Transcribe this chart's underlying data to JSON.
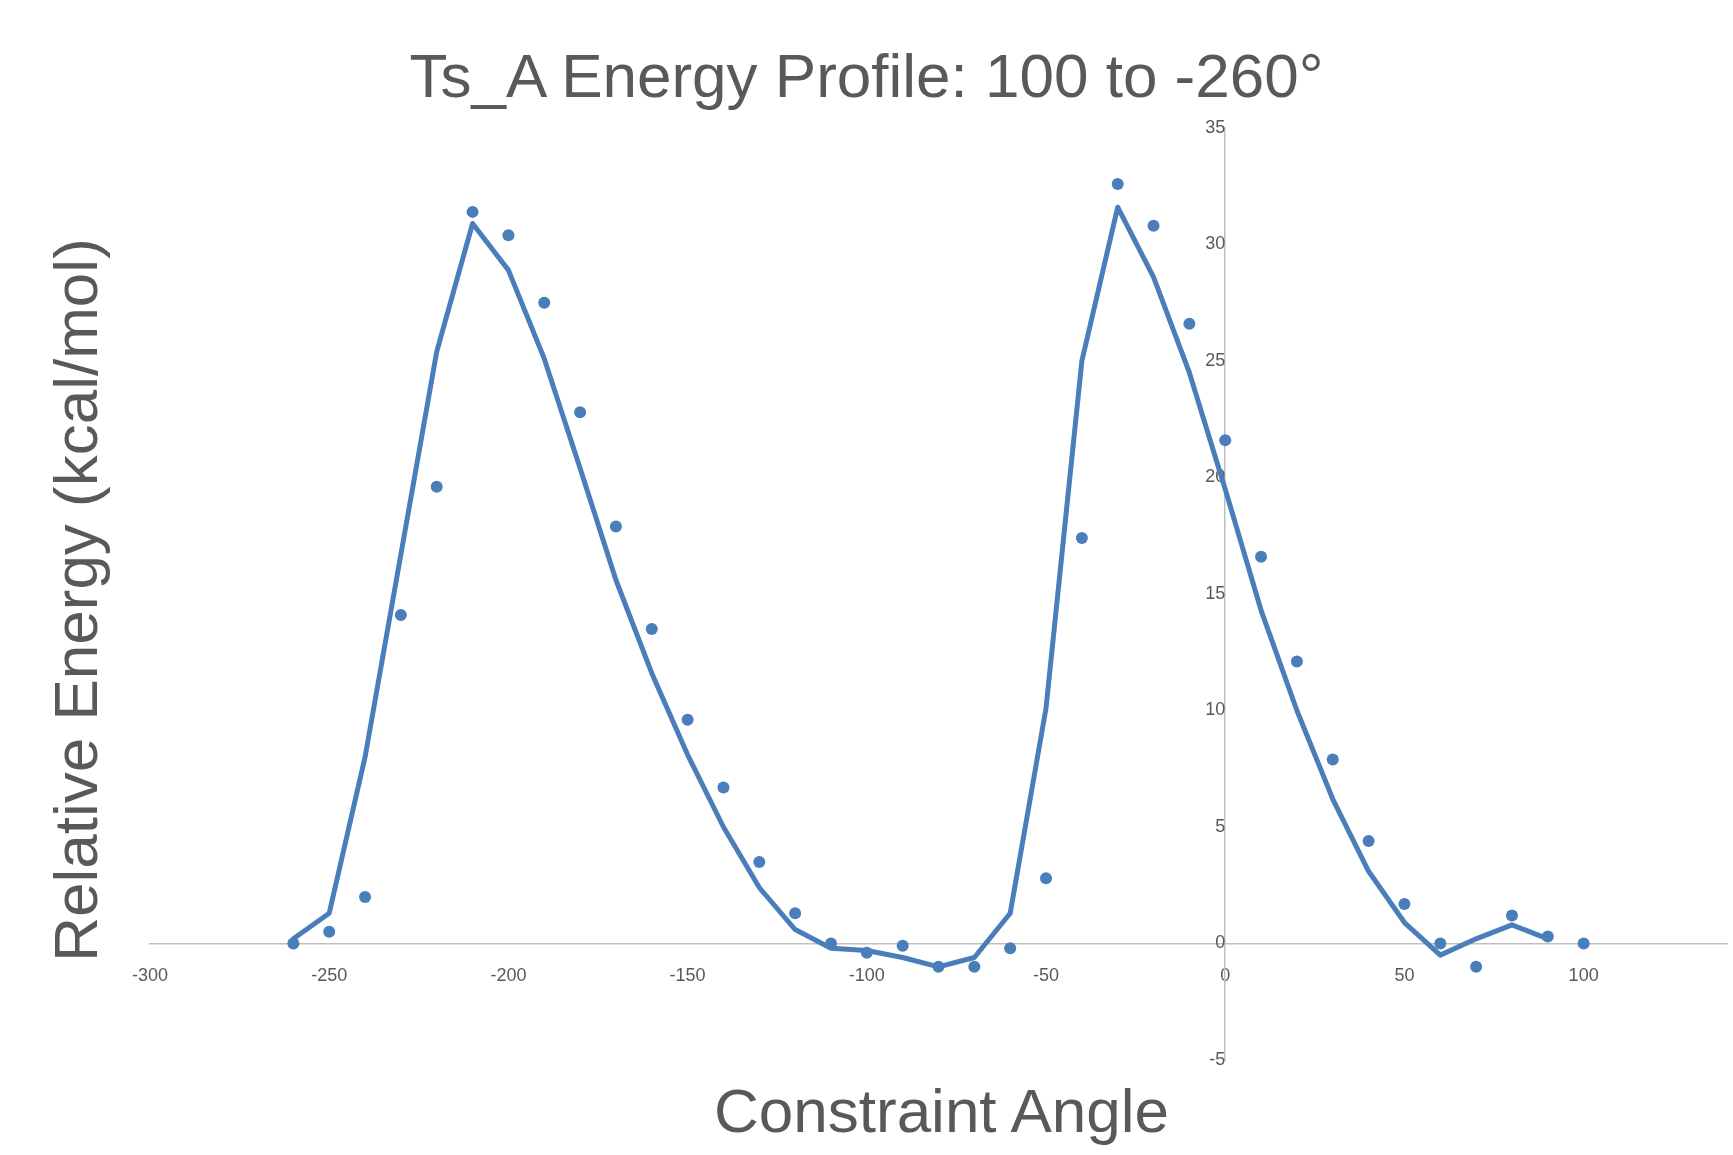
{
  "chart_data": {
    "type": "scatter",
    "title": "Ts_A Energy Profile: 100 to -260°",
    "xlabel": "Constraint Angle",
    "ylabel": "Relative Energy (kcal/mol)",
    "xlim": [
      -300,
      140
    ],
    "ylim": [
      -5,
      35
    ],
    "xticks": [
      -300,
      -250,
      -200,
      -150,
      -100,
      -50,
      0,
      50,
      100
    ],
    "yticks": [
      -5,
      0,
      5,
      10,
      15,
      20,
      25,
      30,
      35
    ],
    "grid": false,
    "legend": false,
    "series": [
      {
        "marker": "circle",
        "color": "#4a7ebb",
        "x": [
          -260,
          -250,
          -240,
          -230,
          -220,
          -210,
          -200,
          -190,
          -180,
          -170,
          -160,
          -150,
          -140,
          -130,
          -120,
          -110,
          -100,
          -90,
          -80,
          -70,
          -60,
          -50,
          -40,
          -30,
          -20,
          -10,
          0,
          10,
          20,
          30,
          40,
          50,
          60,
          70,
          80,
          90,
          100
        ],
        "values": [
          0,
          0.5,
          2.0,
          14.1,
          19.6,
          31.4,
          30.4,
          27.5,
          22.8,
          17.9,
          13.5,
          9.6,
          6.7,
          3.5,
          1.3,
          0,
          -0.4,
          -0.1,
          -1.0,
          -1.0,
          -0.2,
          2.8,
          17.4,
          32.6,
          30.8,
          26.6,
          21.6,
          16.6,
          12.1,
          7.9,
          4.4,
          1.7,
          0,
          -1.0,
          1.2,
          0.3,
          0
        ]
      },
      {
        "type": "line",
        "marker": "none",
        "color": "#4a7ebb",
        "x": [
          -260,
          -250,
          -240,
          -230,
          -220,
          -210,
          -200,
          -190,
          -180,
          -170,
          -160,
          -150,
          -140,
          -130,
          -120,
          -110,
          -100,
          -90,
          -80,
          -70,
          -60,
          -50,
          -40,
          -30,
          -20,
          -10,
          0,
          10,
          20,
          30,
          40,
          50,
          60,
          70,
          80,
          90
        ],
        "values": [
          0.2,
          1.3,
          8.0,
          16.7,
          25.4,
          30.9,
          28.9,
          25.1,
          20.4,
          15.6,
          11.6,
          8.1,
          5.0,
          2.4,
          0.6,
          -0.2,
          -0.3,
          -0.6,
          -1.0,
          -0.6,
          1.3,
          10.1,
          25.0,
          31.6,
          28.6,
          24.5,
          19.5,
          14.3,
          10.0,
          6.2,
          3.1,
          0.9,
          -0.5,
          0.2,
          0.8,
          0.2
        ]
      }
    ]
  }
}
